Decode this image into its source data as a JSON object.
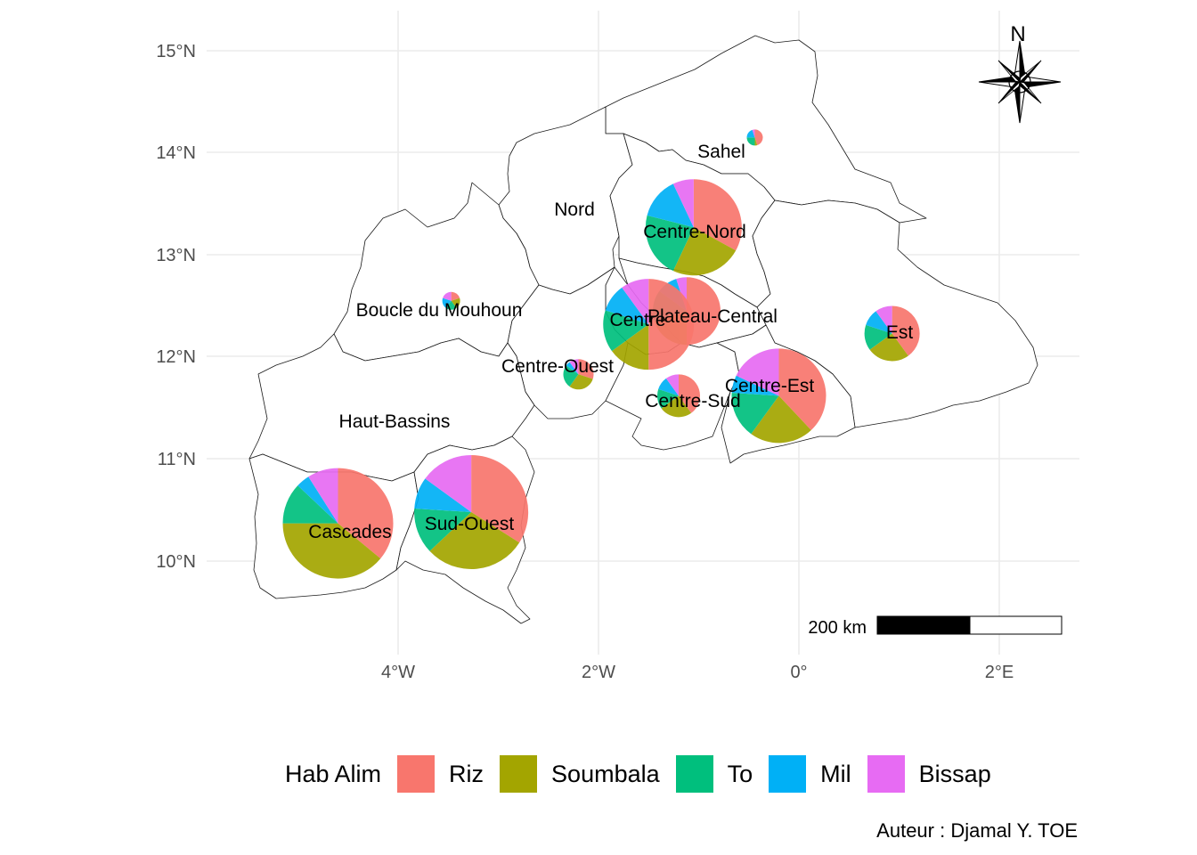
{
  "map": {
    "lat_ticks": [
      "10°N",
      "11°N",
      "12°N",
      "13°N",
      "14°N",
      "15°N"
    ],
    "lon_ticks": [
      "4°W",
      "2°W",
      "0°",
      "2°E"
    ],
    "north_label": "N",
    "scale_label": "200 km",
    "regions": [
      {
        "name": "Sahel"
      },
      {
        "name": "Nord"
      },
      {
        "name": "Centre-Nord"
      },
      {
        "name": "Boucle du Mouhoun"
      },
      {
        "name": "Plateau-Central"
      },
      {
        "name": "Centre"
      },
      {
        "name": "Est"
      },
      {
        "name": "Centre-Ouest"
      },
      {
        "name": "Centre-Est"
      },
      {
        "name": "Centre-Sud"
      },
      {
        "name": "Haut-Bassins"
      },
      {
        "name": "Cascades"
      },
      {
        "name": "Sud-Ouest"
      }
    ]
  },
  "legend": {
    "title": "Hab Alim",
    "items": [
      {
        "label": "Riz",
        "color": "#F8766D"
      },
      {
        "label": "Soumbala",
        "color": "#A3A500"
      },
      {
        "label": "To",
        "color": "#00BF7D"
      },
      {
        "label": "Mil",
        "color": "#00B0F6"
      },
      {
        "label": "Bissap",
        "color": "#E76BF3"
      }
    ]
  },
  "caption": "Auteur : Djamal Y. TOE",
  "chart_data": {
    "type": "pie",
    "categories": [
      "Riz",
      "Soumbala",
      "To",
      "Mil",
      "Bissap"
    ],
    "pies": [
      {
        "region": "Sahel",
        "lon": -0.44,
        "lat": 14.15,
        "values": [
          0.45,
          0.05,
          0.25,
          0.2,
          0.05
        ]
      },
      {
        "region": "Centre-Nord",
        "lon": -1.05,
        "lat": 13.27,
        "values": [
          0.33,
          0.24,
          0.22,
          0.14,
          0.07
        ]
      },
      {
        "region": "Boucle du Mouhoun",
        "lon": -3.47,
        "lat": 12.55,
        "values": [
          0.2,
          0.2,
          0.2,
          0.2,
          0.2
        ]
      },
      {
        "region": "Plateau-Central",
        "lon": -1.12,
        "lat": 12.45,
        "values": [
          0.5,
          0.2,
          0.15,
          0.1,
          0.05
        ]
      },
      {
        "region": "Centre",
        "lon": -1.5,
        "lat": 12.32,
        "values": [
          0.5,
          0.15,
          0.15,
          0.1,
          0.1
        ]
      },
      {
        "region": "Est",
        "lon": 0.93,
        "lat": 12.23,
        "values": [
          0.4,
          0.25,
          0.15,
          0.1,
          0.1
        ]
      },
      {
        "region": "Centre-Ouest",
        "lon": -2.2,
        "lat": 11.83,
        "values": [
          0.3,
          0.3,
          0.25,
          0.05,
          0.1
        ]
      },
      {
        "region": "Centre-Est",
        "lon": -0.2,
        "lat": 11.62,
        "values": [
          0.38,
          0.22,
          0.16,
          0.06,
          0.18
        ]
      },
      {
        "region": "Centre-Sud",
        "lon": -1.2,
        "lat": 11.62,
        "values": [
          0.4,
          0.25,
          0.15,
          0.1,
          0.1
        ]
      },
      {
        "region": "Cascades",
        "lon": -4.6,
        "lat": 10.37,
        "values": [
          0.36,
          0.39,
          0.12,
          0.04,
          0.09
        ]
      },
      {
        "region": "Sud-Ouest",
        "lon": -3.27,
        "lat": 10.48,
        "values": [
          0.34,
          0.29,
          0.13,
          0.09,
          0.15
        ]
      }
    ],
    "xlim": [
      -5.9,
      2.6
    ],
    "ylim": [
      9.3,
      15.35
    ],
    "grid": true,
    "legend_position": "bottom"
  }
}
